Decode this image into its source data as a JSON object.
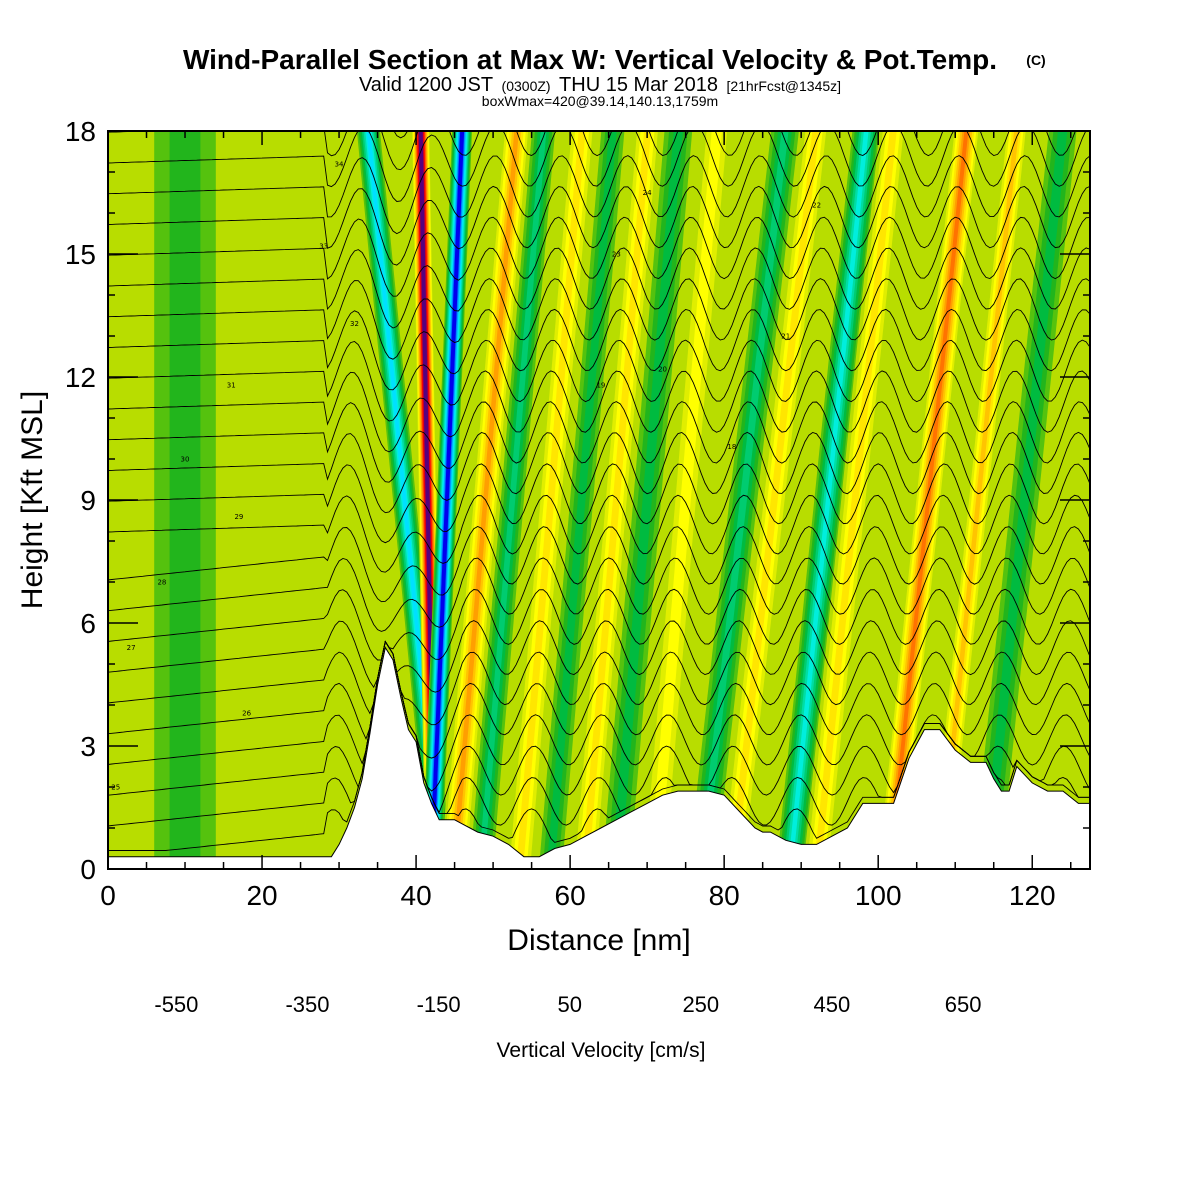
{
  "header": {
    "title": "Wind-Parallel Section at Max W: Vertical Velocity & Pot.Temp.",
    "copyright": "(C)",
    "valid_prefix": "Valid 1200 JST",
    "valid_utc": "(0300Z)",
    "valid_date": "THU 15 Mar 2018",
    "forecast": "[21hrFcst@1345z]",
    "box_info": "boxWmax=420@39.14,140.13,1759m"
  },
  "colors": {
    "terrain": "#ffffff",
    "contour": "#000000",
    "palette": [
      "#0000ee",
      "#0040ff",
      "#0070ff",
      "#00a8ff",
      "#00e0ff",
      "#00eedd",
      "#00dda4",
      "#00cc70",
      "#00bb40",
      "#22b51c",
      "#55c20e",
      "#88cc00",
      "#b8dd00",
      "#e0ee00",
      "#ffff00",
      "#ffe600",
      "#ffc400",
      "#ff9f00",
      "#ff7300",
      "#ff4400",
      "#ff0000",
      "#cc0022",
      "#a00044",
      "#800066",
      "#55007f"
    ]
  },
  "chart_data": {
    "type": "heatmap",
    "title": "Wind-Parallel Section at Max W: Vertical Velocity & Pot.Temp.",
    "xlabel": "Distance [nm]",
    "ylabel": "Height [Kft MSL]",
    "xlim": [
      0,
      127.5
    ],
    "ylim": [
      0,
      18
    ],
    "x_ticks": [
      0,
      20,
      40,
      60,
      80,
      100,
      120
    ],
    "y_ticks": [
      0,
      3,
      6,
      9,
      12,
      15,
      18
    ],
    "colorbar": {
      "label": "Vertical Velocity [cm/s]",
      "min": -575,
      "max": 775,
      "step": 50,
      "tick_values": [
        -550,
        -350,
        -150,
        50,
        250,
        450,
        650
      ],
      "tick_labels": [
        "-550",
        "-350",
        "-150",
        "50",
        "250",
        "450",
        "650"
      ]
    },
    "vertical_velocity_features": [
      {
        "x": 10,
        "tilt": 0,
        "width": 4.0,
        "value": -120
      },
      {
        "x": 32,
        "tilt": 0.2,
        "width": 2.0,
        "value": 60
      },
      {
        "x": 38.5,
        "tilt": -0.52,
        "width": 1.5,
        "value": -380
      },
      {
        "x": 41.5,
        "tilt": -0.1,
        "width": 1.2,
        "value": 650
      },
      {
        "x": 44,
        "tilt": 0.22,
        "width": 1.3,
        "value": -560
      },
      {
        "x": 49,
        "tilt": 0.45,
        "width": 1.8,
        "value": 300
      },
      {
        "x": 52.5,
        "tilt": 0.45,
        "width": 1.5,
        "value": -200
      },
      {
        "x": 57.5,
        "tilt": 0.45,
        "width": 1.8,
        "value": 230
      },
      {
        "x": 61.5,
        "tilt": 0.45,
        "width": 1.5,
        "value": -180
      },
      {
        "x": 66,
        "tilt": 0.45,
        "width": 1.8,
        "value": 200
      },
      {
        "x": 70,
        "tilt": 0.45,
        "width": 1.8,
        "value": -170
      },
      {
        "x": 75,
        "tilt": 0.45,
        "width": 2.0,
        "value": 180
      },
      {
        "x": 82.5,
        "tilt": 0.6,
        "width": 1.8,
        "value": -220
      },
      {
        "x": 86.5,
        "tilt": 0.6,
        "width": 1.8,
        "value": 220
      },
      {
        "x": 93.5,
        "tilt": 0.55,
        "width": 1.8,
        "value": -300
      },
      {
        "x": 97,
        "tilt": 0.55,
        "width": 1.8,
        "value": 200
      },
      {
        "x": 106.5,
        "tilt": 0.55,
        "width": 1.8,
        "value": 380
      },
      {
        "x": 113,
        "tilt": 0.55,
        "width": 1.5,
        "value": 260
      },
      {
        "x": 119,
        "tilt": 0.55,
        "width": 1.8,
        "value": -180
      }
    ],
    "terrain_profile": {
      "x": [
        0,
        29,
        30,
        31,
        32,
        33,
        34,
        35,
        36,
        37,
        38,
        39,
        40,
        41,
        42,
        43,
        44,
        45,
        46,
        47,
        48,
        50,
        52,
        54,
        56,
        58,
        60,
        62,
        64,
        66,
        68,
        70,
        72,
        74,
        76,
        78,
        80,
        82,
        84,
        85,
        86,
        88,
        90,
        92,
        94,
        96,
        98,
        100,
        102,
        104,
        106,
        108,
        110,
        112,
        114,
        115,
        116,
        117,
        118,
        119,
        120,
        122,
        124,
        126,
        127.5
      ],
      "height_kft": [
        0.3,
        0.3,
        0.6,
        1.0,
        1.5,
        2.2,
        3.3,
        4.5,
        5.4,
        5.1,
        4.2,
        3.4,
        3.1,
        2.1,
        1.6,
        1.2,
        1.2,
        1.2,
        1.1,
        1.0,
        0.9,
        0.8,
        0.6,
        0.3,
        0.3,
        0.5,
        0.6,
        0.8,
        1.0,
        1.2,
        1.4,
        1.6,
        1.8,
        1.9,
        1.9,
        1.9,
        1.8,
        1.4,
        1.0,
        0.9,
        0.9,
        0.7,
        0.6,
        0.6,
        0.8,
        1.0,
        1.6,
        1.6,
        1.6,
        2.7,
        3.4,
        3.4,
        2.9,
        2.6,
        2.6,
        2.2,
        1.9,
        1.9,
        2.5,
        2.3,
        2.1,
        1.9,
        1.9,
        1.6,
        1.6
      ]
    },
    "potential_temperature_contours": {
      "interval_K": 1,
      "labels": [
        "34",
        "33",
        "32",
        "31",
        "30",
        "29",
        "28",
        "27",
        "26",
        "25",
        "24",
        "23",
        "22",
        "21",
        "20",
        "19",
        "18"
      ]
    }
  }
}
